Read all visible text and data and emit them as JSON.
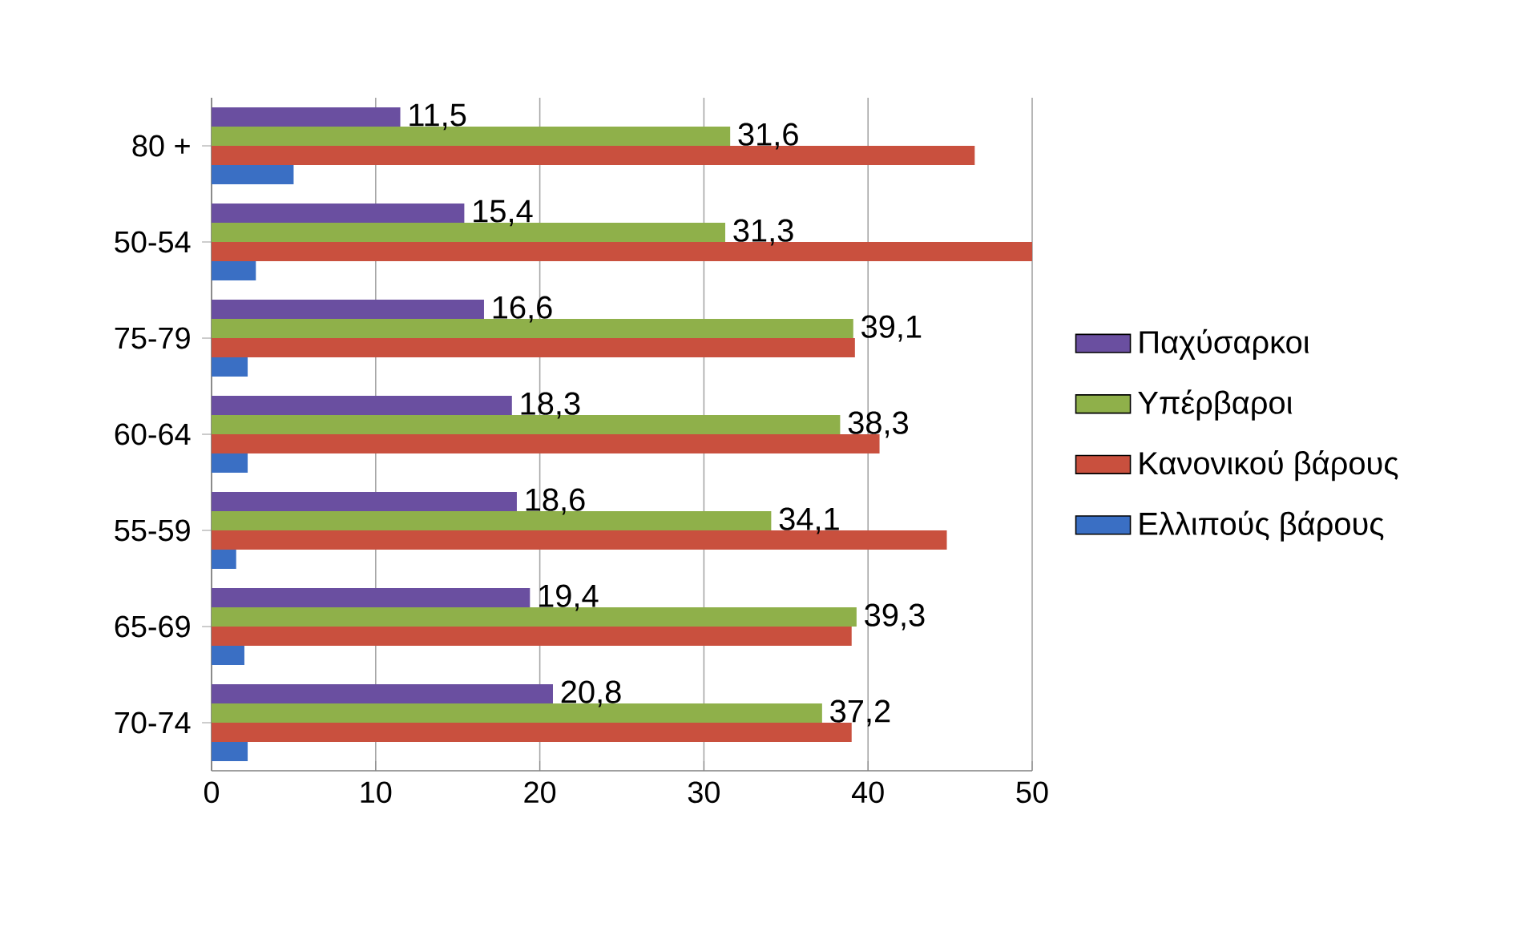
{
  "chart_data": {
    "type": "bar",
    "orientation": "horizontal",
    "categories": [
      "80 +",
      "50-54",
      "75-79",
      "60-64",
      "55-59",
      "65-69",
      "70-74"
    ],
    "series": [
      {
        "name": "Παχύσαρκοι",
        "color": "#6a4fa0",
        "values": [
          11.5,
          15.4,
          16.6,
          18.3,
          18.6,
          19.4,
          20.8
        ],
        "value_labels": [
          "11,5",
          "15,4",
          "16,6",
          "18,3",
          "18,6",
          "19,4",
          "20,8"
        ]
      },
      {
        "name": "Υπέρβαροι",
        "color": "#8fb04a",
        "values": [
          31.6,
          31.3,
          39.1,
          38.3,
          34.1,
          39.3,
          37.2
        ],
        "value_labels": [
          "31,6",
          "31,3",
          "39,1",
          "38,3",
          "34,1",
          "39,3",
          "37,2"
        ]
      },
      {
        "name": "Κανονικού βάρους",
        "color": "#c9503e",
        "values": [
          46.5,
          50,
          39.2,
          40.7,
          44.8,
          39,
          39
        ]
      },
      {
        "name": "Ελλιπούς βάρους",
        "color": "#3a6fc4",
        "values": [
          5,
          2.7,
          2.2,
          2.2,
          1.5,
          2,
          2.2
        ]
      }
    ],
    "xlim": [
      0,
      50
    ],
    "xticks": [
      0,
      10,
      20,
      30,
      40,
      50
    ],
    "grid": "x",
    "legend": "right"
  }
}
